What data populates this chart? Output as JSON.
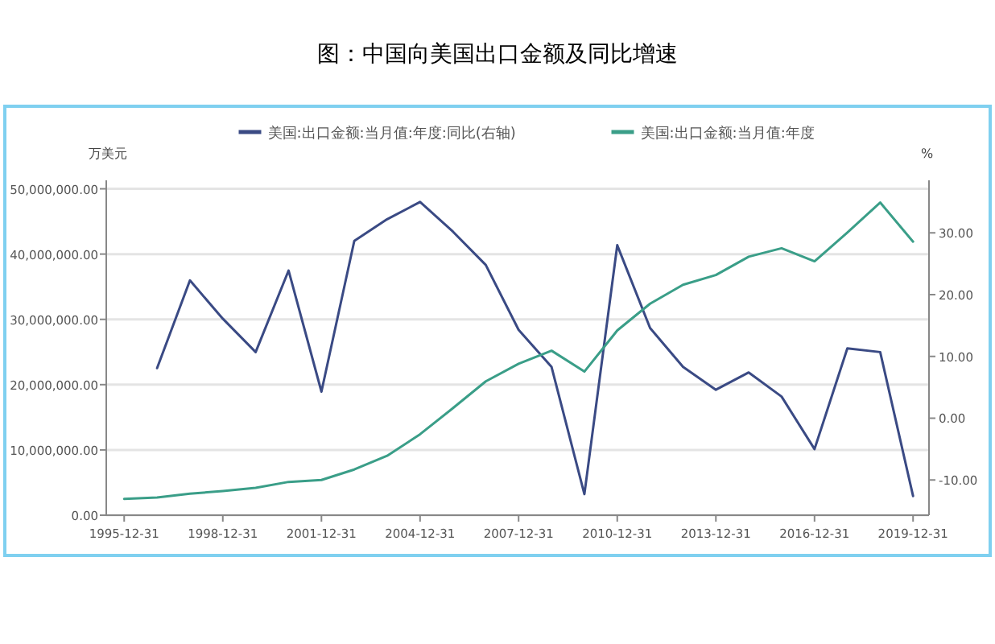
{
  "chart_data": {
    "type": "line",
    "title": "图：中国向美国出口金额及同比增速",
    "ylabel": "万美元",
    "y2label": "%",
    "x": [
      "1995-12-31",
      "1996-12-31",
      "1997-12-31",
      "1998-12-31",
      "1999-12-31",
      "2000-12-31",
      "2001-12-31",
      "2002-12-31",
      "2003-12-31",
      "2004-12-31",
      "2005-12-31",
      "2006-12-31",
      "2007-12-31",
      "2008-12-31",
      "2009-12-31",
      "2010-12-31",
      "2011-12-31",
      "2012-12-31",
      "2013-12-31",
      "2014-12-31",
      "2015-12-31",
      "2016-12-31",
      "2017-12-31",
      "2018-12-31",
      "2019-12-31"
    ],
    "series": [
      {
        "name": "美国:出口金额:当月值:年度:同比(右轴)",
        "color": "#3a4a84",
        "axis": "y2",
        "values": [
          null,
          8.1,
          22.3,
          16.1,
          10.7,
          23.9,
          4.3,
          28.7,
          32.2,
          35.0,
          30.2,
          24.8,
          14.3,
          8.3,
          -12.3,
          28.0,
          14.6,
          8.3,
          4.6,
          7.4,
          3.5,
          -5.0,
          11.3,
          10.7,
          -12.6
        ]
      },
      {
        "name": "美国:出口金额:当月值:年度",
        "color": "#3a9e88",
        "values": [
          2500000,
          2700000,
          3300000,
          3700000,
          4200000,
          5100000,
          5400000,
          7000000,
          9100000,
          12400000,
          16400000,
          20500000,
          23200000,
          25200000,
          22000000,
          28300000,
          32400000,
          35300000,
          36800000,
          39600000,
          40900000,
          38900000,
          43300000,
          47900000,
          41900000
        ]
      }
    ],
    "xlim": [
      "1995-06-15",
      "2020-06-25"
    ],
    "xticks": [
      "1995-12-31",
      "1998-12-31",
      "2001-12-31",
      "2004-12-31",
      "2007-12-31",
      "2010-12-31",
      "2013-12-31",
      "2016-12-31",
      "2019-12-31"
    ],
    "ylim": [
      0,
      51300000
    ],
    "yticks": [
      {
        "value": 0,
        "label": "0.00"
      },
      {
        "value": 10000000,
        "label": "10,000,000.00"
      },
      {
        "value": 20000000,
        "label": "20,000,000.00"
      },
      {
        "value": 30000000,
        "label": "30,000,000.00"
      },
      {
        "value": 40000000,
        "label": "40,000,000.00"
      },
      {
        "value": 50000000,
        "label": "50,000,000.00"
      }
    ],
    "y2lim": [
      -15.7,
      38.5
    ],
    "y2ticks": [
      {
        "value": -10,
        "label": "-10.00"
      },
      {
        "value": 0,
        "label": "0.00"
      },
      {
        "value": 10,
        "label": "10.00"
      },
      {
        "value": 20,
        "label": "20.00"
      },
      {
        "value": 30,
        "label": "30.00"
      }
    ],
    "grid": "y",
    "legend": "top",
    "line_style": "solid",
    "marker": "none"
  }
}
